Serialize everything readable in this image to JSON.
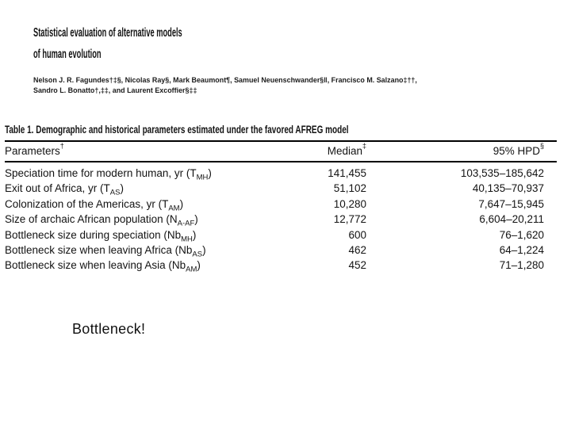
{
  "paper": {
    "title_line1": "Statistical evaluation of alternative models",
    "title_line2": "of human evolution",
    "authors_line1": "Nelson J. R. Fagundes†‡§, Nicolas Ray§, Mark Beaumont¶, Samuel Neuenschwander§‖, Francisco M. Salzano‡††,",
    "authors_line2": "Sandro L. Bonatto†,‡‡, and Laurent Excoffier§‡‡"
  },
  "table": {
    "title": "Table 1. Demographic and historical parameters estimated under the favored AFREG model",
    "columns": [
      {
        "label": "Parameters",
        "note": "†"
      },
      {
        "label": "Median",
        "note": "‡"
      },
      {
        "label": "95% HPD",
        "note": "§"
      }
    ],
    "rows": [
      {
        "name": "Speciation time for modern human, yr",
        "symbol": "T",
        "sub": "MH",
        "median": "141,455",
        "hpd": "103,535–185,642"
      },
      {
        "name": "Exit out of Africa, yr",
        "symbol": "T",
        "sub": "AS",
        "median": "51,102",
        "hpd": "40,135–70,937"
      },
      {
        "name": "Colonization of the Americas, yr",
        "symbol": "T",
        "sub": "AM",
        "median": "10,280",
        "hpd": "7,647–15,945"
      },
      {
        "name": "Size of archaic African population",
        "symbol": "N",
        "sub": "A-AF",
        "median": "12,772",
        "hpd": "6,604–20,211"
      },
      {
        "name": "Bottleneck size during speciation",
        "symbol": "Nb",
        "sub": "MH",
        "median": "600",
        "hpd": "76–1,620"
      },
      {
        "name": "Bottleneck size when leaving Africa",
        "symbol": "Nb",
        "sub": "AS",
        "median": "462",
        "hpd": "64–1,224"
      },
      {
        "name": "Bottleneck size when leaving Asia",
        "symbol": "Nb",
        "sub": "AM",
        "median": "452",
        "hpd": "71–1,280"
      }
    ]
  },
  "annotation": {
    "label": "Bottleneck!"
  }
}
